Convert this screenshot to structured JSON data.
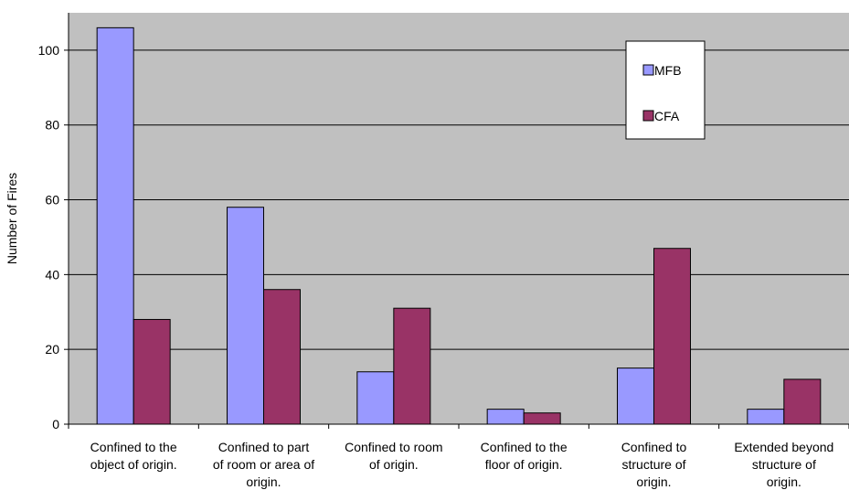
{
  "chart_data": {
    "type": "bar",
    "ylabel": "Number of Fires",
    "xlabel": "",
    "ylim": [
      0,
      110
    ],
    "yticks": [
      0,
      20,
      40,
      60,
      80,
      100
    ],
    "grid": true,
    "legend_position": "top-right",
    "categories": [
      [
        "Confined to the",
        "object of origin."
      ],
      [
        "Confined to part",
        "of room or area of",
        "origin."
      ],
      [
        "Confined to room",
        "of origin."
      ],
      [
        "Confined to the",
        "floor of origin."
      ],
      [
        "Confined to",
        "structure of",
        "origin."
      ],
      [
        "Extended beyond",
        "structure of",
        "origin."
      ]
    ],
    "series": [
      {
        "name": "MFB",
        "color": "#9999ff",
        "values": [
          106,
          58,
          14,
          4,
          15,
          4
        ]
      },
      {
        "name": "CFA",
        "color": "#993366",
        "values": [
          28,
          36,
          31,
          3,
          47,
          12
        ]
      }
    ],
    "plot_background": "#c0c0c0"
  }
}
